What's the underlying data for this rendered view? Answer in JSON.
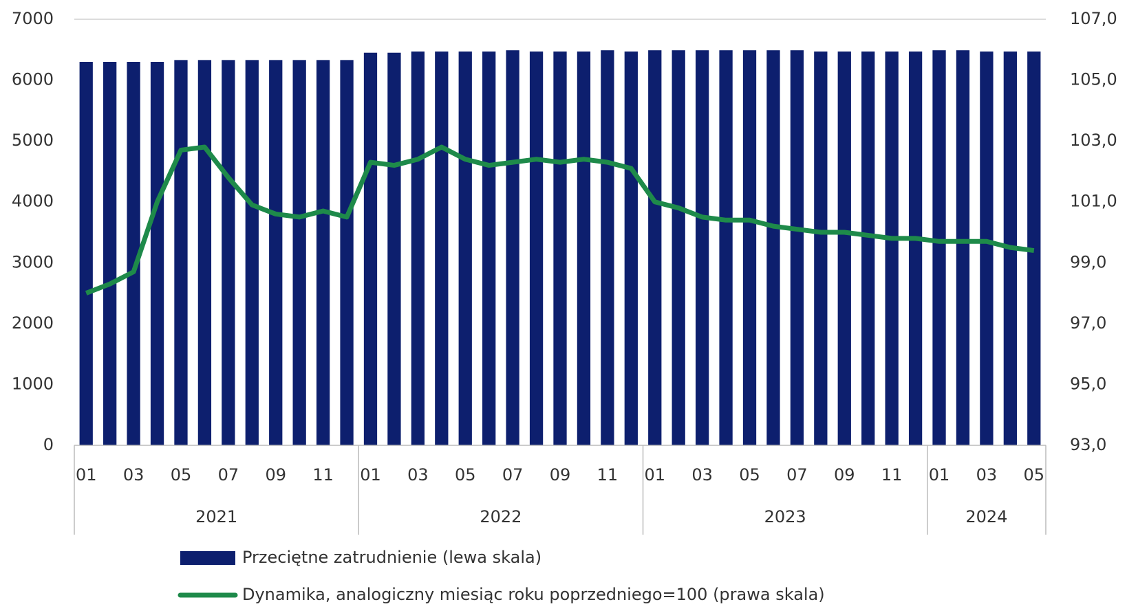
{
  "chart_data": {
    "type": "bar-line",
    "categories": [
      "01",
      null,
      "03",
      null,
      "05",
      null,
      "07",
      null,
      "09",
      null,
      "11",
      null,
      "01",
      null,
      "03",
      null,
      "05",
      null,
      "07",
      null,
      "09",
      null,
      "11",
      null,
      "01",
      null,
      "03",
      null,
      "05",
      null,
      "07",
      null,
      "09",
      null,
      "11",
      null,
      "01",
      null,
      "03",
      null,
      "05"
    ],
    "year_labels": [
      "2021",
      "2022",
      "2023",
      "2024"
    ],
    "series": [
      {
        "name": "Przeciętne zatrudnienie (lewa skala)",
        "type": "bar",
        "color": "#0d1f6e",
        "values": [
          6300,
          6300,
          6300,
          6300,
          6330,
          6330,
          6330,
          6330,
          6330,
          6330,
          6330,
          6330,
          6450,
          6450,
          6470,
          6470,
          6470,
          6470,
          6490,
          6470,
          6470,
          6470,
          6490,
          6470,
          6490,
          6490,
          6490,
          6490,
          6490,
          6490,
          6490,
          6470,
          6470,
          6470,
          6470,
          6470,
          6490,
          6490,
          6470,
          6470,
          6470
        ]
      },
      {
        "name": "Dynamika, analogiczny miesiąc roku poprzedniego=100 (prawa skala)",
        "type": "line",
        "axis": "y2",
        "color": "#1e8a4a",
        "values": [
          98.0,
          98.3,
          98.7,
          101.0,
          102.7,
          102.8,
          101.8,
          100.9,
          100.6,
          100.5,
          100.7,
          100.5,
          102.3,
          102.2,
          102.4,
          102.8,
          102.4,
          102.2,
          102.3,
          102.4,
          102.3,
          102.4,
          102.3,
          102.1,
          101.0,
          100.8,
          100.5,
          100.4,
          100.4,
          100.2,
          100.1,
          100.0,
          100.0,
          99.9,
          99.8,
          99.8,
          99.7,
          99.7,
          99.7,
          99.5,
          99.4
        ]
      }
    ],
    "ylim": [
      0,
      7000
    ],
    "yticks": [
      0,
      1000,
      2000,
      3000,
      4000,
      5000,
      6000,
      7000
    ],
    "y2lim": [
      93,
      107
    ],
    "y2ticks": [
      {
        "value": 93,
        "label": "93,0"
      },
      {
        "value": 95,
        "label": "95,0"
      },
      {
        "value": 97,
        "label": "97,0"
      },
      {
        "value": 99,
        "label": "99,0"
      },
      {
        "value": 101,
        "label": "101,0"
      },
      {
        "value": 103,
        "label": "103,0"
      },
      {
        "value": 105,
        "label": "105,0"
      },
      {
        "value": 107,
        "label": "107,0"
      }
    ],
    "grid": false
  }
}
